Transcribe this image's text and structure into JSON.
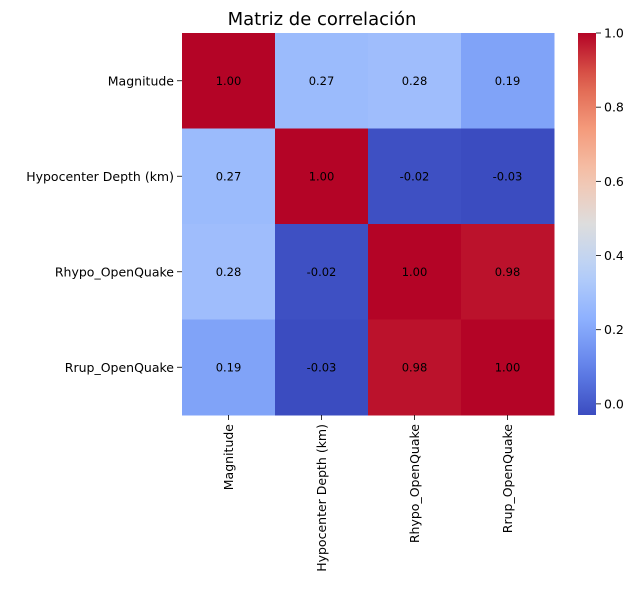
{
  "chart_data": {
    "type": "heatmap",
    "title": "Matriz de correlación",
    "xlabel": "",
    "ylabel": "",
    "categories": [
      "Magnitude",
      "Hypocenter Depth (km)",
      "Rhypo_OpenQuake",
      "Rrup_OpenQuake"
    ],
    "matrix": [
      [
        1.0,
        0.27,
        0.28,
        0.19
      ],
      [
        0.27,
        1.0,
        -0.02,
        -0.03
      ],
      [
        0.28,
        -0.02,
        1.0,
        0.98
      ],
      [
        0.19,
        -0.03,
        0.98,
        1.0
      ]
    ],
    "annotations": [
      [
        "1.00",
        "0.27",
        "0.28",
        "0.19"
      ],
      [
        "0.27",
        "1.00",
        "-0.02",
        "-0.03"
      ],
      [
        "0.28",
        "-0.02",
        "1.00",
        "0.98"
      ],
      [
        "0.19",
        "-0.03",
        "0.98",
        "1.00"
      ]
    ],
    "colormap": "coolwarm",
    "vmin": -0.03,
    "vmax": 1.0,
    "colorbar_ticks": [
      "0.0",
      "0.2",
      "0.4",
      "0.6",
      "0.8",
      "1.0"
    ],
    "colorbar_tick_values": [
      0.0,
      0.2,
      0.4,
      0.6,
      0.8,
      1.0
    ]
  }
}
